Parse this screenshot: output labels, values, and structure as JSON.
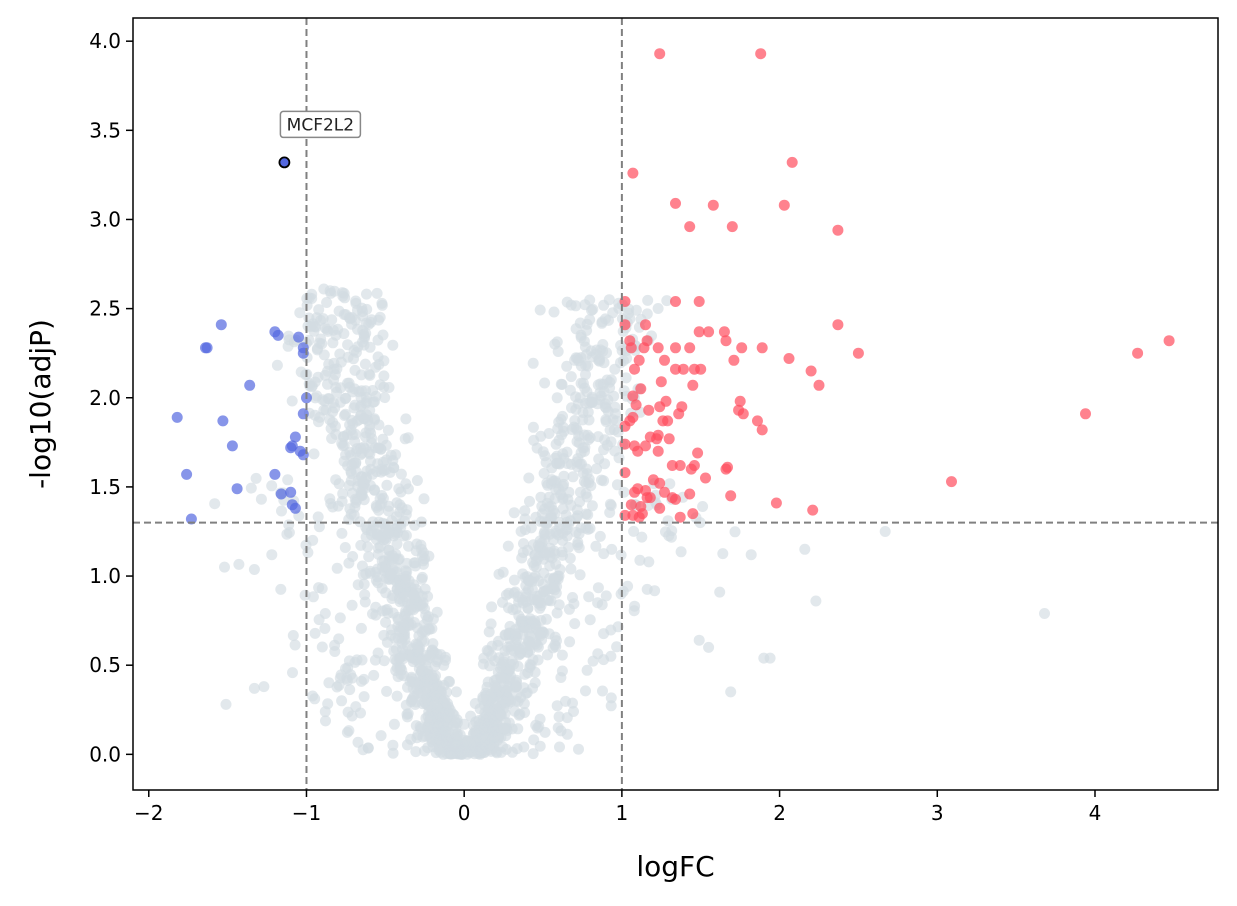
{
  "chart_data": {
    "type": "scatter",
    "title": "",
    "xlabel": "logFC",
    "ylabel": "-log10(adjP)",
    "xlim": [
      -2.1,
      4.78
    ],
    "ylim": [
      -0.2,
      4.13
    ],
    "xticks": [
      -2,
      -1,
      0,
      1,
      2,
      3,
      4
    ],
    "xtick_labels": [
      "−2",
      "−1",
      "0",
      "1",
      "2",
      "3",
      "4"
    ],
    "yticks": [
      0.0,
      0.5,
      1.0,
      1.5,
      2.0,
      2.5,
      3.0,
      3.5,
      4.0
    ],
    "ytick_labels": [
      "0.0",
      "0.5",
      "1.0",
      "1.5",
      "2.0",
      "2.5",
      "3.0",
      "3.5",
      "4.0"
    ],
    "thresholds": {
      "logFC": [
        -1,
        1
      ],
      "neg_log10_adjP": 1.3
    },
    "colors": {
      "up": "#ff4d5e",
      "down": "#5468e0",
      "ns": "#d3dbe2",
      "threshold": "#808080",
      "highlight_edge": "#000000"
    },
    "series": [
      {
        "name": "Up",
        "points": [
          [
            1.24,
            3.93
          ],
          [
            1.88,
            3.93
          ],
          [
            1.07,
            3.26
          ],
          [
            2.08,
            3.32
          ],
          [
            1.34,
            3.09
          ],
          [
            1.58,
            3.08
          ],
          [
            2.03,
            3.08
          ],
          [
            1.43,
            2.96
          ],
          [
            1.7,
            2.96
          ],
          [
            2.37,
            2.94
          ],
          [
            1.02,
            2.54
          ],
          [
            1.34,
            2.54
          ],
          [
            1.49,
            2.54
          ],
          [
            2.37,
            2.41
          ],
          [
            1.02,
            2.41
          ],
          [
            1.15,
            2.41
          ],
          [
            1.49,
            2.37
          ],
          [
            1.55,
            2.37
          ],
          [
            1.65,
            2.37
          ],
          [
            1.05,
            2.32
          ],
          [
            1.16,
            2.32
          ],
          [
            1.66,
            2.32
          ],
          [
            1.06,
            2.28
          ],
          [
            1.14,
            2.28
          ],
          [
            1.23,
            2.28
          ],
          [
            1.34,
            2.28
          ],
          [
            1.43,
            2.28
          ],
          [
            1.76,
            2.28
          ],
          [
            1.89,
            2.28
          ],
          [
            2.5,
            2.25
          ],
          [
            1.11,
            2.21
          ],
          [
            1.27,
            2.21
          ],
          [
            1.71,
            2.21
          ],
          [
            2.06,
            2.22
          ],
          [
            1.08,
            2.16
          ],
          [
            1.34,
            2.16
          ],
          [
            1.39,
            2.16
          ],
          [
            1.46,
            2.16
          ],
          [
            1.5,
            2.16
          ],
          [
            2.2,
            2.15
          ],
          [
            1.25,
            2.09
          ],
          [
            1.45,
            2.07
          ],
          [
            2.25,
            2.07
          ],
          [
            1.12,
            2.05
          ],
          [
            1.07,
            2.01
          ],
          [
            1.28,
            1.98
          ],
          [
            1.75,
            1.98
          ],
          [
            1.09,
            1.96
          ],
          [
            1.24,
            1.95
          ],
          [
            1.38,
            1.95
          ],
          [
            1.74,
            1.93
          ],
          [
            1.77,
            1.91
          ],
          [
            1.17,
            1.93
          ],
          [
            1.07,
            1.89
          ],
          [
            1.26,
            1.87
          ],
          [
            1.36,
            1.91
          ],
          [
            1.29,
            1.87
          ],
          [
            1.86,
            1.87
          ],
          [
            1.02,
            1.84
          ],
          [
            1.05,
            1.87
          ],
          [
            1.89,
            1.82
          ],
          [
            1.23,
            1.79
          ],
          [
            1.18,
            1.78
          ],
          [
            1.22,
            1.77
          ],
          [
            1.3,
            1.77
          ],
          [
            1.08,
            1.73
          ],
          [
            1.02,
            1.74
          ],
          [
            1.15,
            1.73
          ],
          [
            1.23,
            1.7
          ],
          [
            1.1,
            1.7
          ],
          [
            1.48,
            1.69
          ],
          [
            1.37,
            1.62
          ],
          [
            1.32,
            1.62
          ],
          [
            1.46,
            1.62
          ],
          [
            1.44,
            1.6
          ],
          [
            1.66,
            1.6
          ],
          [
            1.67,
            1.61
          ],
          [
            1.02,
            1.58
          ],
          [
            1.53,
            1.55
          ],
          [
            1.2,
            1.54
          ],
          [
            1.24,
            1.52
          ],
          [
            3.09,
            1.53
          ],
          [
            1.1,
            1.49
          ],
          [
            1.15,
            1.48
          ],
          [
            1.08,
            1.47
          ],
          [
            1.27,
            1.47
          ],
          [
            1.43,
            1.46
          ],
          [
            1.18,
            1.44
          ],
          [
            1.32,
            1.44
          ],
          [
            1.69,
            1.45
          ],
          [
            1.16,
            1.44
          ],
          [
            1.34,
            1.43
          ],
          [
            1.98,
            1.41
          ],
          [
            1.06,
            1.4
          ],
          [
            1.12,
            1.39
          ],
          [
            1.24,
            1.38
          ],
          [
            2.21,
            1.37
          ],
          [
            1.13,
            1.35
          ],
          [
            1.45,
            1.35
          ],
          [
            1.02,
            1.34
          ],
          [
            1.07,
            1.34
          ],
          [
            1.11,
            1.33
          ],
          [
            1.37,
            1.33
          ],
          [
            3.94,
            1.91
          ],
          [
            4.27,
            2.25
          ],
          [
            4.47,
            2.32
          ]
        ]
      },
      {
        "name": "Down",
        "points": [
          [
            -1.54,
            2.41
          ],
          [
            -1.2,
            2.37
          ],
          [
            -1.18,
            2.35
          ],
          [
            -1.05,
            2.34
          ],
          [
            -1.64,
            2.28
          ],
          [
            -1.63,
            2.28
          ],
          [
            -1.02,
            2.28
          ],
          [
            -1.02,
            2.25
          ],
          [
            -1.36,
            2.07
          ],
          [
            -1.0,
            2.0
          ],
          [
            -1.02,
            1.91
          ],
          [
            -1.82,
            1.89
          ],
          [
            -1.53,
            1.87
          ],
          [
            -1.07,
            1.78
          ],
          [
            -1.09,
            1.73
          ],
          [
            -1.1,
            1.72
          ],
          [
            -1.47,
            1.73
          ],
          [
            -1.04,
            1.7
          ],
          [
            -1.02,
            1.68
          ],
          [
            -1.2,
            1.57
          ],
          [
            -1.76,
            1.57
          ],
          [
            -1.44,
            1.49
          ],
          [
            -1.1,
            1.47
          ],
          [
            -1.16,
            1.46
          ],
          [
            -1.09,
            1.4
          ],
          [
            -1.07,
            1.38
          ],
          [
            -1.73,
            1.32
          ]
        ]
      },
      {
        "name": "Highlighted",
        "points": [
          [
            -1.14,
            3.32
          ]
        ],
        "labels": [
          "MCF2L2"
        ]
      }
    ],
    "annotations": [
      {
        "text": "MCF2L2",
        "x": -1.14,
        "y": 3.32
      }
    ],
    "non_significant": {
      "description": "dense grey volcano cloud of non-significant genes",
      "count_estimate": 1800,
      "left_arm": {
        "x_at_top": -0.87,
        "x_at_bottom": -0.06,
        "y_top": 2.6
      },
      "right_arm": {
        "x_at_top": 0.96,
        "x_at_bottom": 0.06,
        "y_top": 2.55
      },
      "outliers": [
        [
          2.67,
          1.25
        ],
        [
          3.68,
          0.79
        ],
        [
          1.9,
          0.54
        ],
        [
          1.94,
          0.54
        ],
        [
          2.23,
          0.86
        ],
        [
          2.16,
          1.15
        ],
        [
          1.82,
          1.12
        ],
        [
          1.69,
          0.35
        ],
        [
          -1.51,
          0.28
        ],
        [
          -1.52,
          1.05
        ],
        [
          -1.22,
          1.12
        ],
        [
          -0.89,
          2.61
        ],
        [
          -0.85,
          2.6
        ],
        [
          0.92,
          2.55
        ],
        [
          0.98,
          2.53
        ],
        [
          0.7,
          2.21
        ],
        [
          0.59,
          2.0
        ],
        [
          1.55,
          0.6
        ],
        [
          1.49,
          0.64
        ],
        [
          1.62,
          0.91
        ],
        [
          -1.27,
          0.38
        ],
        [
          -1.33,
          0.37
        ]
      ]
    }
  }
}
